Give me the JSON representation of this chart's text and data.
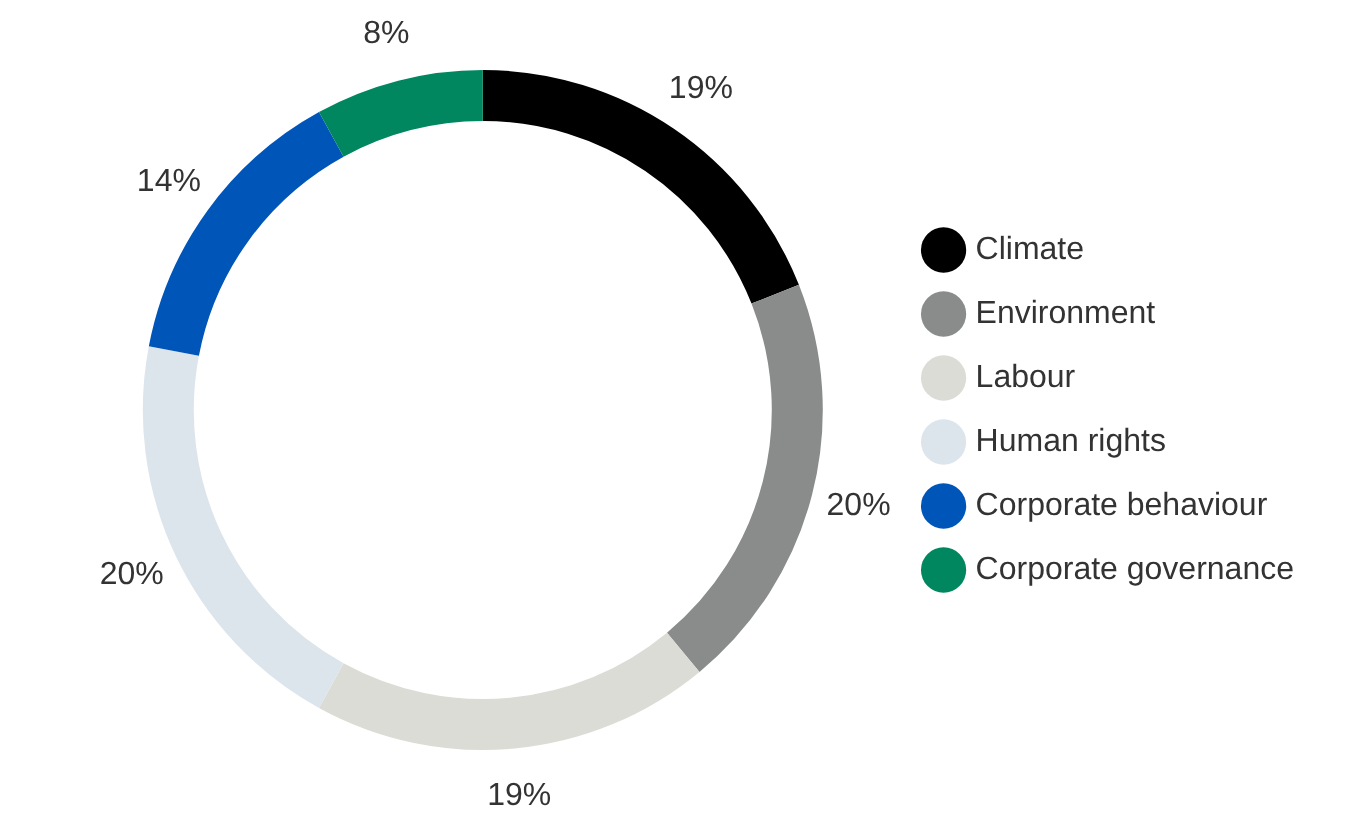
{
  "chart_data": {
    "type": "donut",
    "categories": [
      "Climate",
      "Environment",
      "Labour",
      "Human rights",
      "Corporate behaviour",
      "Corporate governance"
    ],
    "values": [
      19,
      20,
      19,
      20,
      14,
      8
    ],
    "value_labels": [
      "19%",
      "20%",
      "19%",
      "20%",
      "14%",
      "8%"
    ],
    "colors": [
      "#000000",
      "#8a8c8c",
      "#dcdcd6",
      "#dde5ec",
      "#0055b8",
      "#00875f"
    ],
    "legend": "right"
  }
}
